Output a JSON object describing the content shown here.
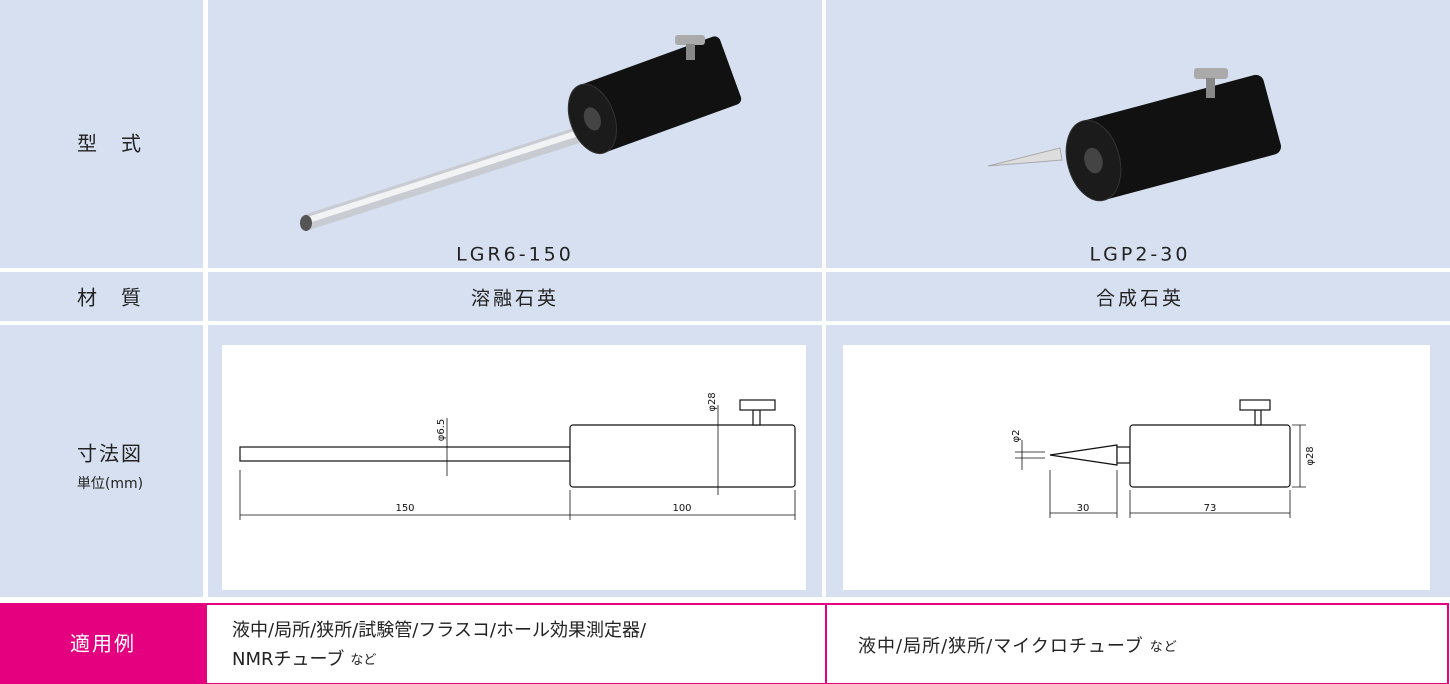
{
  "model": {
    "label": "型　式",
    "values": [
      "LGR6-150",
      "LGP2-30"
    ]
  },
  "material": {
    "label": "材　質",
    "values": [
      "溶融石英",
      "合成石英"
    ]
  },
  "dimensions": {
    "label": "寸法図",
    "unit": "単位(mm)",
    "drawings": [
      {
        "labels": [
          "φ6.5",
          "φ28",
          "150",
          "100"
        ]
      },
      {
        "labels": [
          "φ2",
          "φ28",
          "30",
          "73"
        ]
      }
    ]
  },
  "application": {
    "label": "適用例",
    "values": [
      {
        "lines": [
          "液中/局所/狭所/試験管/フラスコ/ホール効果測定器/",
          "NMRチューブ"
        ],
        "suffix": "など"
      },
      {
        "lines": [
          "液中/局所/狭所/マイクロチューブ"
        ],
        "suffix": "など"
      }
    ]
  }
}
